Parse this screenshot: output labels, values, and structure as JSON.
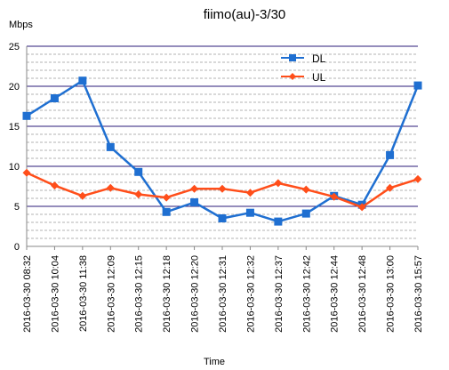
{
  "chart_data": {
    "type": "line",
    "title": "fiimo(au)-3/30",
    "xlabel": "Time",
    "ylabel": "Mbps",
    "ylim": [
      0,
      25
    ],
    "y_major_ticks": [
      "0",
      "5",
      "10",
      "15",
      "20",
      "25"
    ],
    "grid": "on",
    "legend_position": "top-right",
    "categories": [
      "2016-03-30 08:32",
      "2016-03-30 10:04",
      "2016-03-30 11:38",
      "2016-03-30 12:09",
      "2016-03-30 12:15",
      "2016-03-30 12:18",
      "2016-03-30 12:20",
      "2016-03-30 12:31",
      "2016-03-30 12:32",
      "2016-03-30 12:37",
      "2016-03-30 12:42",
      "2016-03-30 12:44",
      "2016-03-30 12:48",
      "2016-03-30 13:00",
      "2016-03-30 15:57"
    ],
    "series": [
      {
        "name": "DL",
        "color": "#1f6fd1",
        "marker": "square",
        "values": [
          16.3,
          18.5,
          20.7,
          12.4,
          9.3,
          4.3,
          5.5,
          3.5,
          4.2,
          3.1,
          4.1,
          6.3,
          5.2,
          11.4,
          20.1
        ]
      },
      {
        "name": "UL",
        "color": "#ff4e1a",
        "marker": "diamond",
        "values": [
          9.2,
          7.6,
          6.3,
          7.3,
          6.5,
          6.1,
          7.2,
          7.2,
          6.7,
          7.9,
          7.1,
          6.2,
          4.9,
          7.3,
          8.4
        ]
      }
    ],
    "colors": {
      "major_grid": "#2b1b78",
      "minor_grid": "#b3b3b3",
      "axis": "#888888"
    }
  }
}
